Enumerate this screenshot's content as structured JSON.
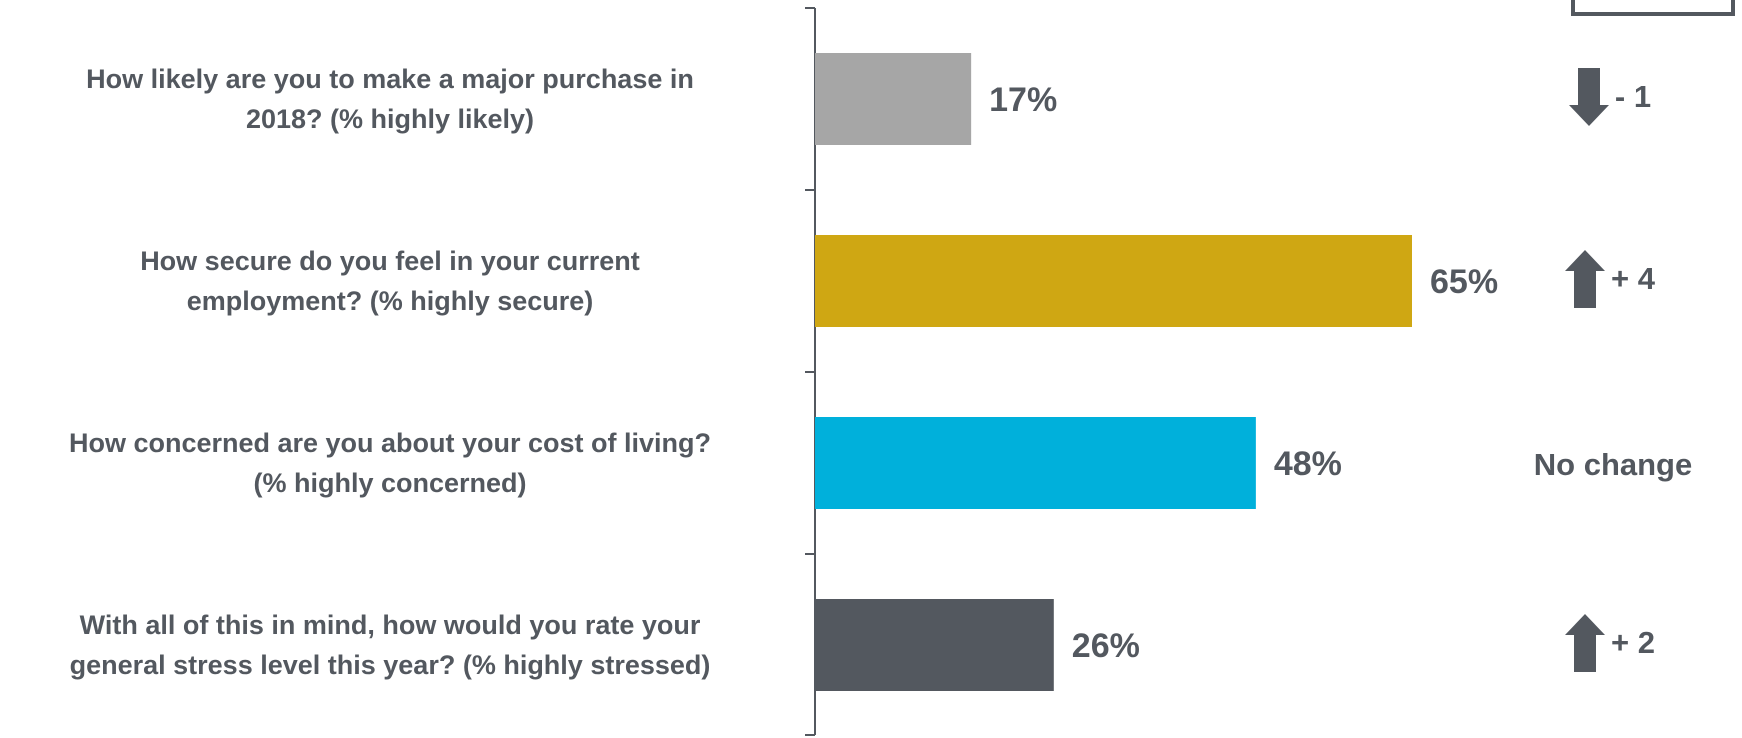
{
  "chart_data": {
    "type": "bar",
    "orientation": "horizontal",
    "categories": [
      "How likely are you to make a major purchase in 2018? (% highly likely)",
      "How secure do you feel in your current employment? (% highly secure)",
      "How concerned are you about your cost of living? (% highly concerned)",
      "With all of this in mind, how would you rate your general stress level this year? (% highly stressed)"
    ],
    "category_lines": [
      [
        "How likely are you to make a major purchase in",
        "2018? (% highly likely)"
      ],
      [
        "How secure do you feel in your current",
        "employment? (% highly secure)"
      ],
      [
        "How concerned are you about your cost of living?",
        "(% highly concerned)"
      ],
      [
        "With all of this in mind, how would you rate your",
        "general stress level this year? (% highly stressed)"
      ]
    ],
    "values": [
      17,
      65,
      48,
      26
    ],
    "value_labels": [
      "17%",
      "65%",
      "48%",
      "26%"
    ],
    "bar_colors": [
      "#a6a6a6",
      "#cfa713",
      "#00b0db",
      "#53585f"
    ],
    "xlim": [
      0,
      100
    ],
    "changes": [
      {
        "direction": "down",
        "icon": "arrow-down-icon",
        "text": "- 1"
      },
      {
        "direction": "up",
        "icon": "arrow-up-icon",
        "text": "+ 4"
      },
      {
        "direction": "none",
        "icon": "",
        "text": "No change"
      },
      {
        "direction": "up",
        "icon": "arrow-up-icon",
        "text": "+ 2"
      }
    ],
    "text_color": "#53585f",
    "axis_color": "#53585f",
    "grid": false,
    "legend": "none"
  }
}
